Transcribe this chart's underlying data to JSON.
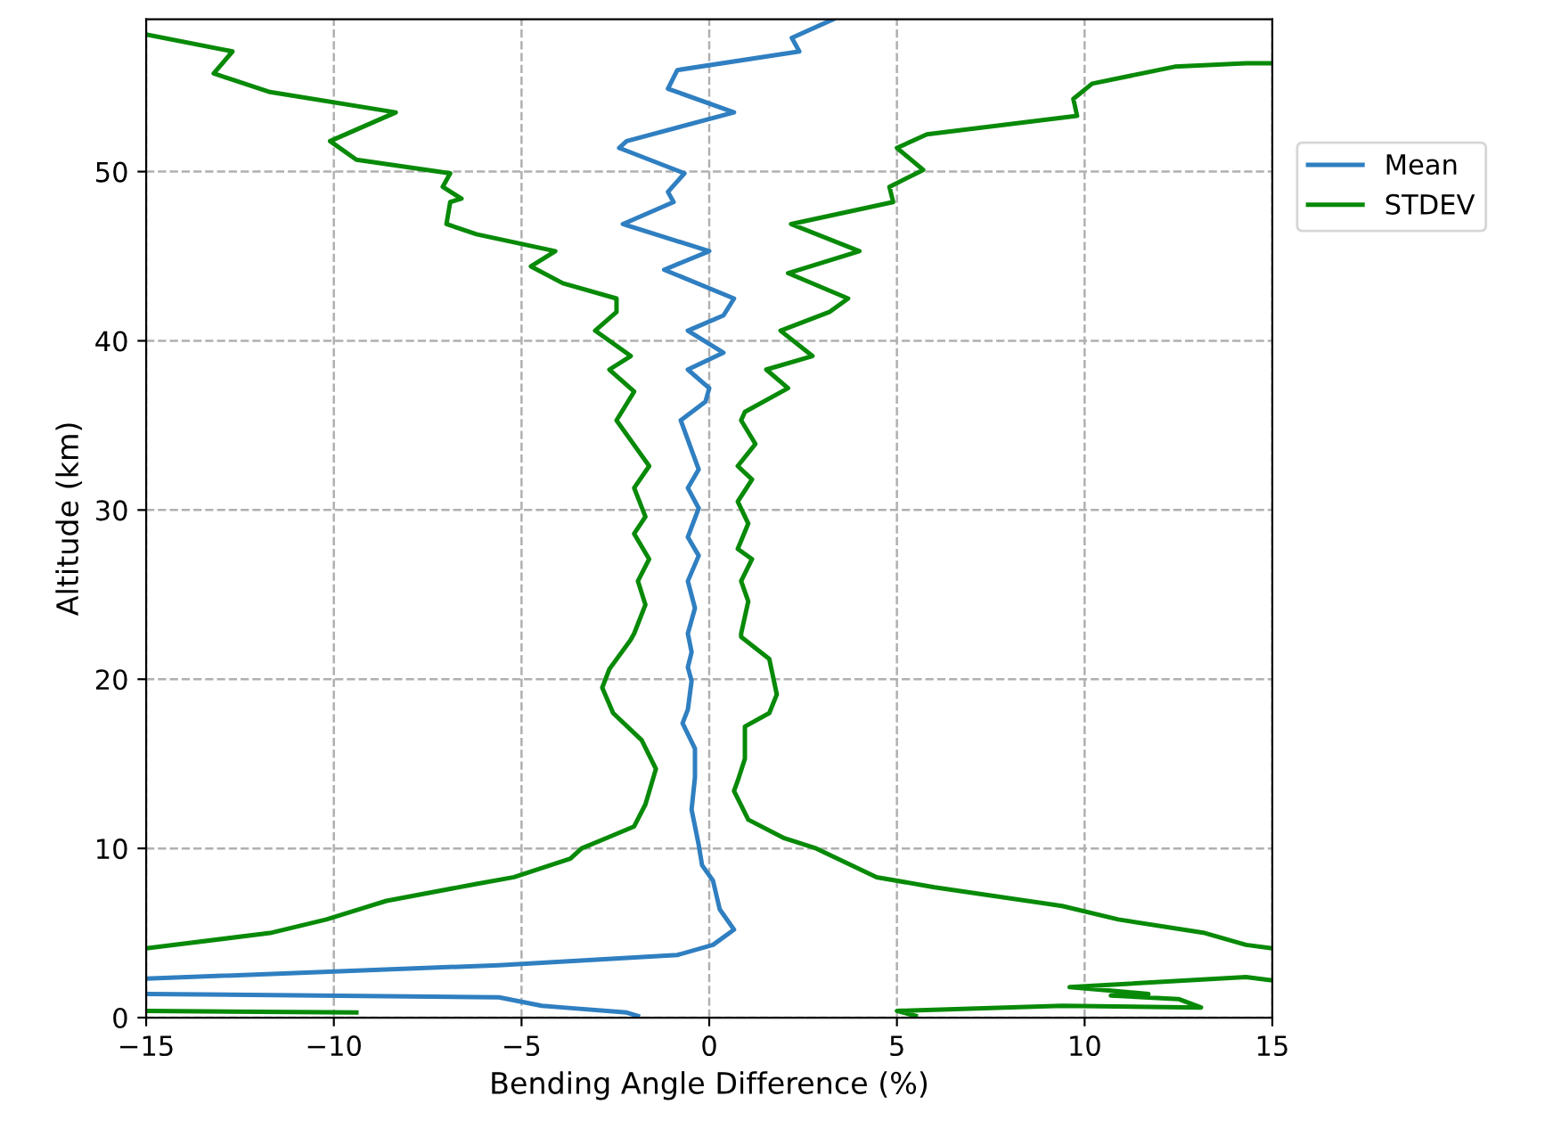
{
  "chart_data": {
    "type": "line",
    "xlabel": "Bending Angle Difference (%)",
    "ylabel": "Altitude (km)",
    "xlim": [
      -15,
      15
    ],
    "xticks": [
      {
        "value": -15,
        "label": "−15"
      },
      {
        "value": -10,
        "label": "−10"
      },
      {
        "value": -5,
        "label": "−5"
      },
      0,
      5,
      10,
      15
    ],
    "ylim": [
      0,
      59
    ],
    "yticks": [
      0,
      10,
      20,
      30,
      40,
      50
    ],
    "grid": true,
    "legend": "right",
    "series": [
      {
        "name": "Mean",
        "color": "#2f7fc1",
        "x": [
          3.3,
          2.2,
          2.4,
          -0.85,
          -1.1,
          0.66,
          -2.2,
          -2.4,
          -0.66,
          -1.1,
          -0.95,
          -2.3,
          0,
          -1.2,
          0.66,
          0.38,
          -0.57,
          0.38,
          -0.57,
          0,
          -0.1,
          -0.76,
          -0.28,
          -0.57,
          -0.28,
          -0.57,
          -0.28,
          -0.57,
          -0.38,
          -0.57,
          -0.47,
          -0.57,
          -0.47,
          -0.57,
          -0.71,
          -0.38,
          -0.38,
          -0.47,
          -0.28,
          -0.19,
          0.1,
          0.28,
          0.66,
          0.1,
          -0.85,
          -5.6,
          -15,
          null,
          -15,
          -5.6,
          -4.46,
          -3.9,
          -2.2,
          -1.9
        ],
        "values": [
          59,
          57.9,
          57.1,
          56,
          54.9,
          53.5,
          51.8,
          51.4,
          49.9,
          48.8,
          48.2,
          46.9,
          45.3,
          44.2,
          42.5,
          41.5,
          40.6,
          39.3,
          38.3,
          37.2,
          36.4,
          35.3,
          32.4,
          31.3,
          30.1,
          28.4,
          27.3,
          25.8,
          24.2,
          22.7,
          21.6,
          20.7,
          19.9,
          18.2,
          17.4,
          15.9,
          14.2,
          12.3,
          10.2,
          9,
          8.1,
          6.4,
          5.2,
          4.3,
          3.7,
          3.1,
          2.3,
          null,
          1.4,
          1.2,
          0.7,
          0.6,
          0.3,
          0.1
        ]
      },
      {
        "name": "STDEV",
        "color": "#088a08",
        "x": [
          -15,
          -12.7,
          -13.2,
          -11.7,
          -8.35,
          -10.1,
          -9.4,
          -6.9,
          -7.1,
          -6.6,
          -6.9,
          -7,
          -6.2,
          -4.1,
          -4.75,
          -3.9,
          -2.47,
          -2.47,
          -3.04,
          -2.09,
          -2.66,
          -2,
          -2.47,
          -1.6,
          -2,
          -1.7,
          -2,
          -1.6,
          -1.9,
          -1.7,
          -2,
          -2.1,
          -2.66,
          -2.85,
          -2.56,
          -1.8,
          -1.42,
          -1.7,
          -2,
          -2.75,
          -3.4,
          -3.7,
          -5.2,
          -6.2,
          -8.6,
          -10.2,
          -11.7,
          -15,
          null,
          -15,
          -9.4
        ],
        "values": [
          58.1,
          57.1,
          55.8,
          54.7,
          53.5,
          51.8,
          50.7,
          49.9,
          49.1,
          48.4,
          48.2,
          46.9,
          46.3,
          45.3,
          44.4,
          43.4,
          42.5,
          41.7,
          40.6,
          39.1,
          38.3,
          37,
          35.3,
          32.6,
          31.3,
          29.6,
          28.6,
          27.1,
          25.8,
          24.4,
          22.7,
          22.3,
          20.6,
          19.5,
          18,
          16.4,
          14.7,
          12.6,
          11.3,
          10.6,
          10,
          9.4,
          8.3,
          7.9,
          6.9,
          5.8,
          5,
          4.1,
          null,
          0.4,
          0.3
        ]
      },
      {
        "color": "#088a08",
        "x": [
          15,
          14.3,
          12.4,
          10.2,
          9.7,
          9.8,
          5.8,
          5,
          5.7,
          4.8,
          4.9,
          2.18,
          4,
          2.1,
          3.7,
          3.2,
          1.9,
          2.75,
          1.52,
          2.1,
          0.95,
          0.85,
          1.23,
          0.76,
          1.14,
          0.76,
          1.04,
          0.76,
          1.14,
          0.85,
          1.04,
          0.85,
          0.85,
          1.6,
          1.8,
          1.6,
          0.95,
          0.95,
          0.76,
          0.66,
          1.04,
          2,
          2.85,
          4.46,
          6,
          9.4,
          10.9,
          13.2,
          14.3,
          15,
          null,
          15,
          14.3,
          9.6,
          10.7,
          11.7,
          10.7,
          12.5,
          13.1,
          9.4,
          5,
          5.5
        ],
        "values": [
          56.4,
          56.4,
          56.2,
          55.2,
          54.3,
          53.3,
          52.2,
          51.4,
          50.1,
          49.1,
          48.2,
          46.9,
          45.3,
          44,
          42.5,
          41.7,
          40.6,
          39.1,
          38.3,
          37.2,
          35.8,
          35.3,
          33.9,
          32.6,
          31.8,
          30.5,
          29.2,
          27.7,
          27.1,
          25.8,
          24.6,
          22.7,
          22.5,
          21.2,
          19.1,
          18,
          17.2,
          15.3,
          14,
          13.4,
          11.7,
          10.6,
          10,
          8.3,
          7.7,
          6.6,
          5.8,
          5,
          4.3,
          4.1,
          null,
          2.2,
          2.4,
          1.8,
          1.6,
          1.4,
          1.3,
          1.1,
          0.6,
          0.7,
          0.4,
          0.1
        ]
      }
    ]
  }
}
